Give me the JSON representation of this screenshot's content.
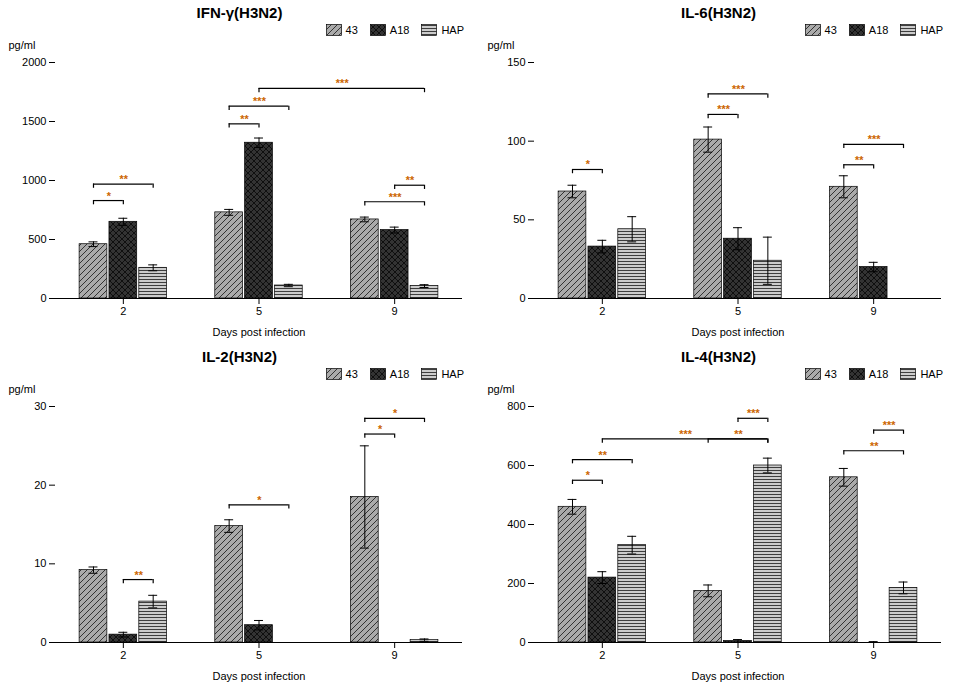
{
  "chart_data": [
    {
      "type": "bar",
      "title": "IFN-γ(H3N2)",
      "xlabel": "Days post infection",
      "ylabel": "pg/ml",
      "categories": [
        "2",
        "5",
        "9"
      ],
      "series": [
        {
          "name": "43",
          "color": "#aaaaaa",
          "values": [
            460,
            730,
            670
          ],
          "errors": [
            20,
            25,
            20
          ]
        },
        {
          "name": "A18",
          "color": "#333333",
          "values": [
            650,
            1320,
            580
          ],
          "errors": [
            30,
            40,
            25
          ]
        },
        {
          "name": "HAP",
          "color": "#cccccc",
          "values": [
            260,
            110,
            105
          ],
          "errors": [
            25,
            10,
            12
          ]
        }
      ],
      "ylim": [
        0,
        2000
      ],
      "yticks": [
        0,
        500,
        1000,
        1500,
        2000
      ],
      "grid": false,
      "legend": "upper right",
      "annotations": [
        {
          "text": "*",
          "from": {
            "category": "2",
            "series": "43"
          },
          "to": {
            "category": "2",
            "series": "A18"
          },
          "y": 830,
          "color": "#cc6600"
        },
        {
          "text": "**",
          "from": {
            "category": "2",
            "series": "43"
          },
          "to": {
            "category": "2",
            "series": "HAP"
          },
          "y": 970,
          "color": "#cc6600"
        },
        {
          "text": "**",
          "from": {
            "category": "5",
            "series": "43"
          },
          "to": {
            "category": "5",
            "series": "A18"
          },
          "y": 1480,
          "color": "#cc6600"
        },
        {
          "text": "***",
          "from": {
            "category": "5",
            "series": "43"
          },
          "to": {
            "category": "5",
            "series": "HAP"
          },
          "y": 1630,
          "color": "#cc6600"
        },
        {
          "text": "***",
          "from": {
            "category": "5",
            "series": "A18"
          },
          "to": {
            "category": "9",
            "series": "HAP"
          },
          "y": 1780,
          "color": "#cc6600"
        },
        {
          "text": "***",
          "from": {
            "category": "9",
            "series": "43"
          },
          "to": {
            "category": "9",
            "series": "HAP"
          },
          "y": 820,
          "color": "#cc6600"
        },
        {
          "text": "**",
          "from": {
            "category": "9",
            "series": "A18"
          },
          "to": {
            "category": "9",
            "series": "HAP"
          },
          "y": 960,
          "color": "#cc6600"
        }
      ]
    },
    {
      "type": "bar",
      "title": "IL-6(H3N2)",
      "xlabel": "Days post infection",
      "ylabel": "pg/ml",
      "categories": [
        "2",
        "5",
        "9"
      ],
      "series": [
        {
          "name": "43",
          "color": "#aaaaaa",
          "values": [
            68,
            101,
            71
          ],
          "errors": [
            4,
            8,
            7
          ]
        },
        {
          "name": "A18",
          "color": "#333333",
          "values": [
            33,
            38,
            20
          ],
          "errors": [
            4,
            7,
            3
          ]
        },
        {
          "name": "HAP",
          "color": "#cccccc",
          "values": [
            44,
            24,
            0
          ],
          "errors": [
            8,
            15,
            0
          ]
        }
      ],
      "ylim": [
        0,
        150
      ],
      "yticks": [
        0,
        50,
        100,
        150
      ],
      "grid": false,
      "legend": "upper right",
      "annotations": [
        {
          "text": "*",
          "from": {
            "category": "2",
            "series": "43"
          },
          "to": {
            "category": "2",
            "series": "A18"
          },
          "y": 82,
          "color": "#cc6600"
        },
        {
          "text": "***",
          "from": {
            "category": "5",
            "series": "43"
          },
          "to": {
            "category": "5",
            "series": "A18"
          },
          "y": 117,
          "color": "#cc6600"
        },
        {
          "text": "***",
          "from": {
            "category": "5",
            "series": "43"
          },
          "to": {
            "category": "5",
            "series": "HAP"
          },
          "y": 130,
          "color": "#cc6600"
        },
        {
          "text": "**",
          "from": {
            "category": "9",
            "series": "43"
          },
          "to": {
            "category": "9",
            "series": "A18"
          },
          "y": 85,
          "color": "#cc6600"
        },
        {
          "text": "***",
          "from": {
            "category": "9",
            "series": "43"
          },
          "to": {
            "category": "9",
            "series": "HAP"
          },
          "y": 98,
          "color": "#cc6600"
        }
      ]
    },
    {
      "type": "bar",
      "title": "IL-2(H3N2)",
      "xlabel": "Days post infection",
      "ylabel": "pg/ml",
      "categories": [
        "2",
        "5",
        "9"
      ],
      "series": [
        {
          "name": "43",
          "color": "#aaaaaa",
          "values": [
            9.2,
            14.8,
            18.5
          ],
          "errors": [
            0.4,
            0.8,
            6.5
          ]
        },
        {
          "name": "A18",
          "color": "#333333",
          "values": [
            1.0,
            2.2,
            0.0
          ],
          "errors": [
            0.3,
            0.6,
            0.0
          ]
        },
        {
          "name": "HAP",
          "color": "#cccccc",
          "values": [
            5.2,
            0.0,
            0.3
          ],
          "errors": [
            0.8,
            0.0,
            0.15
          ]
        }
      ],
      "ylim": [
        0,
        30
      ],
      "yticks": [
        0,
        10,
        20,
        30
      ],
      "grid": false,
      "legend": "upper right",
      "annotations": [
        {
          "text": "**",
          "from": {
            "category": "2",
            "series": "A18"
          },
          "to": {
            "category": "2",
            "series": "HAP"
          },
          "y": 8.0,
          "color": "#cc6600"
        },
        {
          "text": "*",
          "from": {
            "category": "5",
            "series": "43"
          },
          "to": {
            "category": "5",
            "series": "HAP"
          },
          "y": 17.5,
          "color": "#cc6600"
        },
        {
          "text": "*",
          "from": {
            "category": "9",
            "series": "43"
          },
          "to": {
            "category": "9",
            "series": "A18"
          },
          "y": 26.5,
          "color": "#cc6600"
        },
        {
          "text": "*",
          "from": {
            "category": "9",
            "series": "43"
          },
          "to": {
            "category": "9",
            "series": "HAP"
          },
          "y": 28.5,
          "color": "#cc6600"
        }
      ]
    },
    {
      "type": "bar",
      "title": "IL-4(H3N2)",
      "xlabel": "Days post infection",
      "ylabel": "pg/ml",
      "categories": [
        "2",
        "5",
        "9"
      ],
      "series": [
        {
          "name": "43",
          "color": "#aaaaaa",
          "values": [
            460,
            175,
            560
          ],
          "errors": [
            25,
            20,
            30
          ]
        },
        {
          "name": "A18",
          "color": "#333333",
          "values": [
            220,
            5,
            0
          ],
          "errors": [
            20,
            5,
            3
          ]
        },
        {
          "name": "HAP",
          "color": "#cccccc",
          "values": [
            330,
            600,
            185
          ],
          "errors": [
            30,
            25,
            20
          ]
        }
      ],
      "ylim": [
        0,
        800
      ],
      "yticks": [
        0,
        200,
        400,
        600,
        800
      ],
      "grid": false,
      "legend": "upper right",
      "annotations": [
        {
          "text": "*",
          "from": {
            "category": "2",
            "series": "43"
          },
          "to": {
            "category": "2",
            "series": "A18"
          },
          "y": 550,
          "color": "#cc6600"
        },
        {
          "text": "**",
          "from": {
            "category": "2",
            "series": "43"
          },
          "to": {
            "category": "2",
            "series": "HAP"
          },
          "y": 620,
          "color": "#cc6600"
        },
        {
          "text": "***",
          "from": {
            "category": "2",
            "series": "A18"
          },
          "to": {
            "category": "5",
            "series": "HAP"
          },
          "y": 690,
          "color": "#cc6600"
        },
        {
          "text": "**",
          "from": {
            "category": "5",
            "series": "43"
          },
          "to": {
            "category": "5",
            "series": "HAP"
          },
          "y": 690,
          "color": "#cc6600"
        },
        {
          "text": "***",
          "from": {
            "category": "5",
            "series": "A18"
          },
          "to": {
            "category": "5",
            "series": "HAP"
          },
          "y": 760,
          "color": "#cc6600"
        },
        {
          "text": "**",
          "from": {
            "category": "9",
            "series": "43"
          },
          "to": {
            "category": "9",
            "series": "HAP"
          },
          "y": 650,
          "color": "#cc6600"
        },
        {
          "text": "***",
          "from": {
            "category": "9",
            "series": "A18"
          },
          "to": {
            "category": "9",
            "series": "HAP"
          },
          "y": 720,
          "color": "#cc6600"
        }
      ]
    }
  ]
}
